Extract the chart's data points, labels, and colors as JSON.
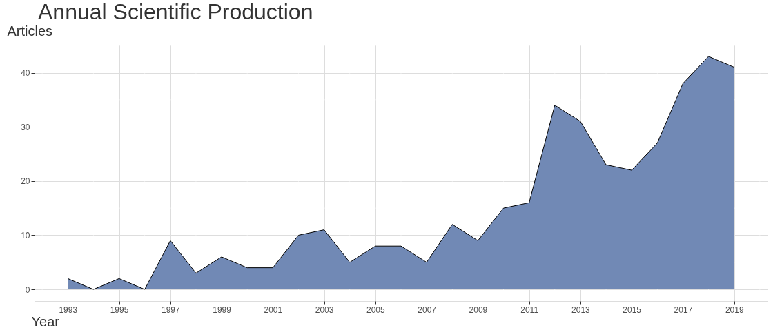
{
  "chart_data": {
    "type": "area",
    "title": "Annual Scientific Production",
    "xlabel": "Year",
    "ylabel": "Articles",
    "x": [
      1993,
      1994,
      1995,
      1996,
      1997,
      1998,
      1999,
      2000,
      2001,
      2002,
      2003,
      2004,
      2005,
      2006,
      2007,
      2008,
      2009,
      2010,
      2011,
      2012,
      2013,
      2014,
      2015,
      2016,
      2017,
      2018,
      2019
    ],
    "series": [
      {
        "color": "#7189b5",
        "values": [
          2,
          0,
          2,
          0,
          9,
          3,
          6,
          4,
          4,
          10,
          11,
          5,
          8,
          8,
          5,
          12,
          9,
          15,
          16,
          34,
          31,
          23,
          22,
          27,
          38,
          43,
          41
        ]
      }
    ],
    "xlim": [
      1991.7,
      2020.3
    ],
    "xticks": [
      1993,
      1995,
      1997,
      1999,
      2001,
      2003,
      2005,
      2007,
      2009,
      2011,
      2013,
      2015,
      2017,
      2019
    ],
    "ylim": [
      -2.15,
      45.15
    ],
    "yticks": [
      0,
      10,
      20,
      30,
      40
    ],
    "grid": true
  }
}
